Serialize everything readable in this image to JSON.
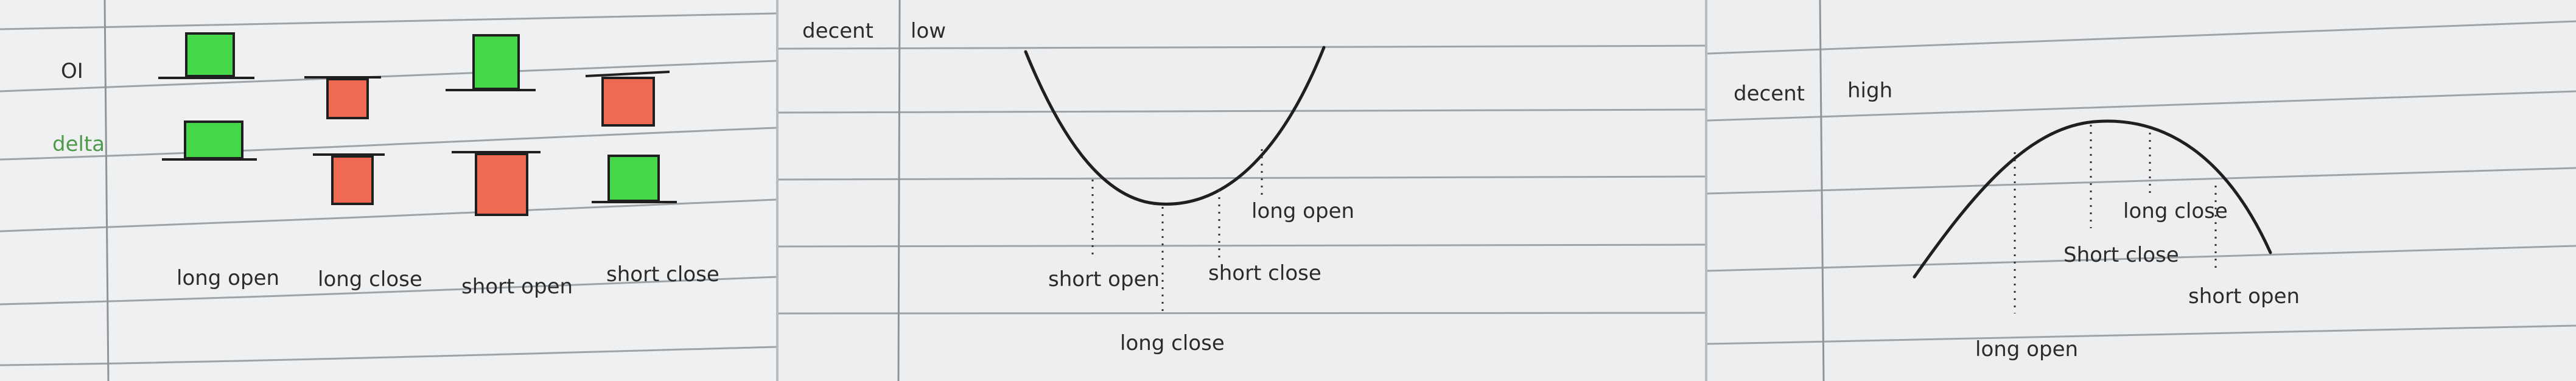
{
  "colors": {
    "paper": "#eeeff1",
    "rule": "#9aa0a6",
    "margin_line": "#8f949a",
    "ink": "#1f1f1f",
    "green": "#46d64a",
    "red": "#ef6a55",
    "label_green": "#4f9a4a"
  },
  "panel1": {
    "row_oi": "OI",
    "row_delta": "delta",
    "columns": [
      "long open",
      "long close",
      "short open",
      "short close"
    ],
    "oi_direction": [
      "up",
      "down",
      "up",
      "down"
    ],
    "delta_direction": [
      "up",
      "down",
      "down",
      "up"
    ]
  },
  "panel2": {
    "title_left": "decent",
    "title_right": "low",
    "curve_shape": "valley",
    "labels": {
      "long_open": "long open",
      "short_open": "short open",
      "short_close": "short close",
      "long_close": "long close"
    }
  },
  "panel3": {
    "title_left": "decent",
    "title_right": "high",
    "curve_shape": "hill",
    "labels": {
      "long_close": "long close",
      "short_close": "Short close",
      "short_open": "short open",
      "long_open": "long open"
    }
  }
}
